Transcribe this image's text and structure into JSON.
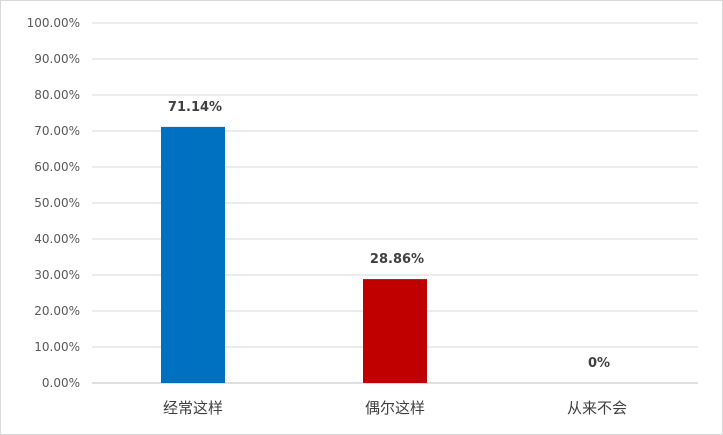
{
  "chart_data": {
    "type": "bar",
    "categories": [
      "经常这样",
      "偶尔这样",
      "从来不会"
    ],
    "values": [
      71.14,
      28.86,
      0
    ],
    "data_labels": [
      "71.14%",
      "28.86%",
      "0%"
    ],
    "colors": [
      "#0070c0",
      "#c00000",
      "#0070c0"
    ],
    "ylim": [
      0,
      100
    ],
    "yticks": [
      "0.00%",
      "10.00%",
      "20.00%",
      "30.00%",
      "40.00%",
      "50.00%",
      "60.00%",
      "70.00%",
      "80.00%",
      "90.00%",
      "100.00%"
    ],
    "grid": true,
    "legend": "none"
  }
}
